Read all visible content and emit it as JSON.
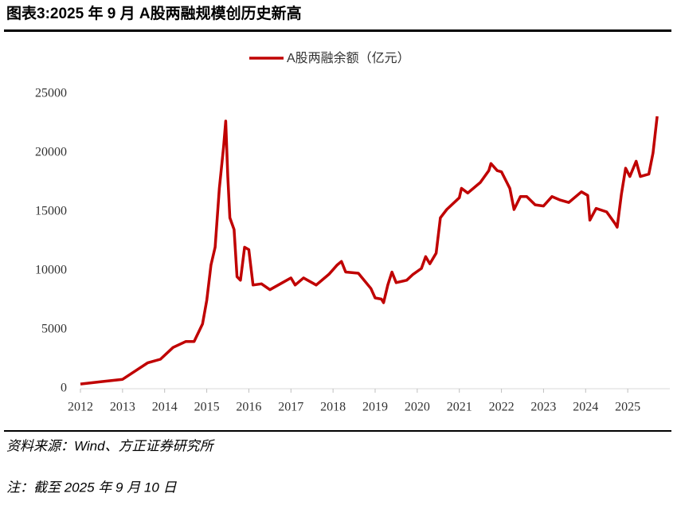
{
  "chart_data": {
    "type": "line",
    "title": "图表3:2025 年 9 月 A股两融规模创历史新高",
    "source": "资料来源：Wind、方正证券研究所",
    "note": "注：截至 2025 年 9 月 10 日",
    "x": [
      2012.0,
      2012.5,
      2013.0,
      2013.3,
      2013.6,
      2013.9,
      2014.2,
      2014.5,
      2014.7,
      2014.9,
      2015.0,
      2015.1,
      2015.2,
      2015.3,
      2015.4,
      2015.45,
      2015.5,
      2015.55,
      2015.65,
      2015.72,
      2015.8,
      2015.9,
      2016.0,
      2016.1,
      2016.3,
      2016.5,
      2016.8,
      2017.0,
      2017.1,
      2017.3,
      2017.6,
      2017.9,
      2018.1,
      2018.2,
      2018.3,
      2018.6,
      2018.9,
      2019.0,
      2019.15,
      2019.2,
      2019.3,
      2019.4,
      2019.5,
      2019.75,
      2019.9,
      2020.1,
      2020.2,
      2020.3,
      2020.45,
      2020.55,
      2020.7,
      2021.0,
      2021.05,
      2021.2,
      2021.5,
      2021.7,
      2021.75,
      2021.9,
      2022.0,
      2022.2,
      2022.3,
      2022.45,
      2022.6,
      2022.8,
      2023.0,
      2023.2,
      2023.4,
      2023.6,
      2023.9,
      2024.05,
      2024.1,
      2024.25,
      2024.5,
      2024.7,
      2024.75,
      2024.85,
      2024.95,
      2025.05,
      2025.2,
      2025.3,
      2025.5,
      2025.6,
      2025.7
    ],
    "series": [
      {
        "name": "A股两融余额（亿元）",
        "color": "#c00000",
        "values": [
          400,
          600,
          800,
          1500,
          2200,
          2500,
          3500,
          4000,
          4000,
          5500,
          7500,
          10500,
          12000,
          17000,
          20500,
          22700,
          18000,
          14500,
          13500,
          9500,
          9200,
          12000,
          11800,
          8800,
          8900,
          8400,
          9000,
          9400,
          8800,
          9400,
          8800,
          9700,
          10500,
          10800,
          9900,
          9800,
          8500,
          7700,
          7600,
          7300,
          8800,
          9900,
          9000,
          9200,
          9700,
          10200,
          11200,
          10600,
          11500,
          14500,
          15200,
          16200,
          17000,
          16600,
          17500,
          18500,
          19100,
          18500,
          18400,
          17000,
          15200,
          16300,
          16300,
          15600,
          15500,
          16300,
          16000,
          15800,
          16700,
          16400,
          14300,
          15300,
          15000,
          14000,
          13700,
          16500,
          18700,
          18000,
          19300,
          18000,
          18200,
          20000,
          23100
        ]
      }
    ],
    "xlim": [
      2012,
      2026
    ],
    "xticks": [
      2012,
      2013,
      2014,
      2015,
      2016,
      2017,
      2018,
      2019,
      2020,
      2021,
      2022,
      2023,
      2024,
      2025
    ],
    "ylim": [
      0,
      25000
    ],
    "yticks": [
      0,
      5000,
      10000,
      15000,
      20000,
      25000
    ]
  }
}
